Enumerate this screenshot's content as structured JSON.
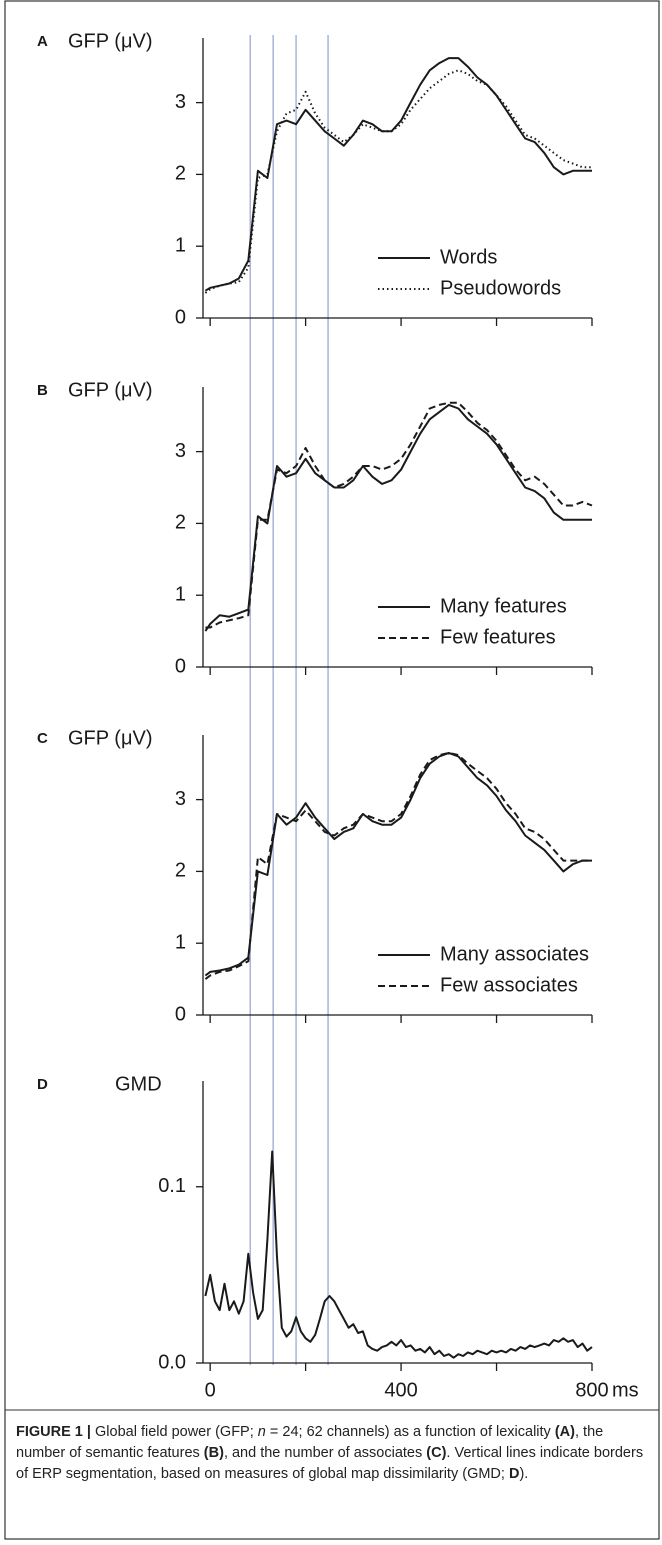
{
  "chart_data": [
    {
      "type": "line",
      "panel": "A",
      "ylabel": "GFP (μV)",
      "x": [
        -10,
        0,
        20,
        40,
        60,
        80,
        100,
        120,
        140,
        160,
        180,
        200,
        220,
        240,
        260,
        280,
        300,
        320,
        340,
        360,
        380,
        400,
        420,
        440,
        460,
        480,
        500,
        520,
        540,
        560,
        580,
        600,
        620,
        640,
        660,
        680,
        700,
        720,
        740,
        760,
        780,
        800
      ],
      "series": [
        {
          "name": "Words",
          "color": "#1a1a1a",
          "dash": "solid",
          "values": [
            0.38,
            0.42,
            0.45,
            0.48,
            0.55,
            0.8,
            2.05,
            1.95,
            2.7,
            2.75,
            2.7,
            2.9,
            2.75,
            2.6,
            2.5,
            2.4,
            2.55,
            2.75,
            2.7,
            2.6,
            2.6,
            2.75,
            3.0,
            3.25,
            3.45,
            3.55,
            3.62,
            3.62,
            3.5,
            3.35,
            3.25,
            3.1,
            2.9,
            2.7,
            2.5,
            2.45,
            2.3,
            2.1,
            2.0,
            2.05,
            2.05,
            2.05
          ]
        },
        {
          "name": "Pseudowords",
          "color": "#1a1a1a",
          "dash": "dotted",
          "values": [
            0.35,
            0.4,
            0.45,
            0.48,
            0.5,
            0.7,
            1.95,
            2.0,
            2.6,
            2.85,
            2.9,
            3.15,
            2.85,
            2.65,
            2.55,
            2.45,
            2.55,
            2.7,
            2.65,
            2.6,
            2.6,
            2.7,
            2.9,
            3.05,
            3.2,
            3.3,
            3.4,
            3.45,
            3.4,
            3.3,
            3.25,
            3.1,
            2.95,
            2.75,
            2.55,
            2.5,
            2.4,
            2.3,
            2.2,
            2.15,
            2.1,
            2.1
          ]
        }
      ],
      "xlim": [
        -15,
        800
      ],
      "xtick_marks": [
        0,
        200,
        400,
        600,
        800
      ],
      "ylim": [
        0,
        3.9
      ],
      "yticks": [
        0,
        1,
        2,
        3
      ],
      "legend": "lower right"
    },
    {
      "type": "line",
      "panel": "B",
      "ylabel": "GFP (μV)",
      "x": [
        -10,
        0,
        20,
        40,
        60,
        80,
        100,
        120,
        140,
        160,
        180,
        200,
        220,
        240,
        260,
        280,
        300,
        320,
        340,
        360,
        380,
        400,
        420,
        440,
        460,
        480,
        500,
        520,
        540,
        560,
        580,
        600,
        620,
        640,
        660,
        680,
        700,
        720,
        740,
        760,
        780,
        800
      ],
      "series": [
        {
          "name": "Many features",
          "color": "#1a1a1a",
          "dash": "solid",
          "values": [
            0.5,
            0.6,
            0.72,
            0.7,
            0.75,
            0.8,
            2.1,
            2.0,
            2.8,
            2.65,
            2.7,
            2.9,
            2.7,
            2.6,
            2.5,
            2.5,
            2.6,
            2.8,
            2.65,
            2.55,
            2.6,
            2.75,
            3.0,
            3.25,
            3.45,
            3.55,
            3.65,
            3.6,
            3.45,
            3.35,
            3.25,
            3.1,
            2.9,
            2.7,
            2.5,
            2.45,
            2.35,
            2.15,
            2.05,
            2.05,
            2.05,
            2.05
          ]
        },
        {
          "name": "Few features",
          "color": "#1a1a1a",
          "dash": "dashed",
          "values": [
            0.55,
            0.55,
            0.62,
            0.65,
            0.68,
            0.72,
            2.05,
            2.05,
            2.75,
            2.7,
            2.8,
            3.05,
            2.8,
            2.6,
            2.5,
            2.55,
            2.65,
            2.8,
            2.8,
            2.75,
            2.8,
            2.9,
            3.1,
            3.35,
            3.6,
            3.65,
            3.68,
            3.68,
            3.55,
            3.4,
            3.3,
            3.15,
            2.95,
            2.75,
            2.6,
            2.65,
            2.55,
            2.4,
            2.25,
            2.25,
            2.3,
            2.25
          ]
        }
      ],
      "xlim": [
        -15,
        800
      ],
      "xtick_marks": [
        0,
        200,
        400,
        600,
        800
      ],
      "ylim": [
        0,
        3.9
      ],
      "yticks": [
        0,
        1,
        2,
        3
      ],
      "legend": "lower right"
    },
    {
      "type": "line",
      "panel": "C",
      "ylabel": "GFP (μV)",
      "x": [
        -10,
        0,
        20,
        40,
        60,
        80,
        100,
        120,
        140,
        160,
        180,
        200,
        220,
        240,
        260,
        280,
        300,
        320,
        340,
        360,
        380,
        400,
        420,
        440,
        460,
        480,
        500,
        520,
        540,
        560,
        580,
        600,
        620,
        640,
        660,
        680,
        700,
        720,
        740,
        760,
        780,
        800
      ],
      "series": [
        {
          "name": "Many associates",
          "color": "#1a1a1a",
          "dash": "solid",
          "values": [
            0.55,
            0.6,
            0.62,
            0.65,
            0.7,
            0.8,
            2.0,
            1.95,
            2.8,
            2.65,
            2.75,
            2.95,
            2.75,
            2.6,
            2.45,
            2.55,
            2.6,
            2.8,
            2.7,
            2.65,
            2.65,
            2.75,
            3.0,
            3.3,
            3.5,
            3.6,
            3.65,
            3.6,
            3.45,
            3.3,
            3.2,
            3.05,
            2.85,
            2.7,
            2.5,
            2.4,
            2.3,
            2.15,
            2.0,
            2.1,
            2.15,
            2.15
          ]
        },
        {
          "name": "Few associates",
          "color": "#1a1a1a",
          "dash": "dashed",
          "values": [
            0.5,
            0.55,
            0.6,
            0.62,
            0.68,
            0.75,
            2.2,
            2.1,
            2.8,
            2.75,
            2.7,
            2.85,
            2.7,
            2.55,
            2.5,
            2.6,
            2.65,
            2.8,
            2.75,
            2.7,
            2.7,
            2.8,
            3.05,
            3.35,
            3.55,
            3.62,
            3.65,
            3.62,
            3.5,
            3.4,
            3.3,
            3.15,
            2.95,
            2.8,
            2.6,
            2.55,
            2.45,
            2.3,
            2.15,
            2.15,
            2.15,
            2.15
          ]
        }
      ],
      "xlim": [
        -15,
        800
      ],
      "xtick_marks": [
        0,
        200,
        400,
        600,
        800
      ],
      "ylim": [
        0,
        3.9
      ],
      "yticks": [
        0,
        1,
        2,
        3
      ],
      "legend": "lower right"
    },
    {
      "type": "line",
      "panel": "D",
      "ylabel": "GMD",
      "x": [
        -10,
        0,
        10,
        20,
        30,
        40,
        50,
        60,
        70,
        80,
        90,
        100,
        110,
        120,
        130,
        140,
        150,
        160,
        170,
        180,
        190,
        200,
        210,
        220,
        230,
        240,
        250,
        260,
        270,
        280,
        290,
        300,
        310,
        320,
        330,
        340,
        350,
        360,
        370,
        380,
        390,
        400,
        410,
        420,
        430,
        440,
        450,
        460,
        470,
        480,
        490,
        500,
        510,
        520,
        530,
        540,
        550,
        560,
        570,
        580,
        590,
        600,
        610,
        620,
        630,
        640,
        650,
        660,
        670,
        680,
        690,
        700,
        710,
        720,
        730,
        740,
        750,
        760,
        770,
        780,
        790,
        800
      ],
      "series": [
        {
          "name": "GMD",
          "color": "#1a1a1a",
          "dash": "solid",
          "values": [
            0.038,
            0.05,
            0.035,
            0.03,
            0.045,
            0.03,
            0.035,
            0.028,
            0.035,
            0.062,
            0.04,
            0.025,
            0.03,
            0.07,
            0.12,
            0.06,
            0.02,
            0.015,
            0.018,
            0.026,
            0.018,
            0.014,
            0.012,
            0.016,
            0.025,
            0.035,
            0.038,
            0.035,
            0.03,
            0.025,
            0.02,
            0.022,
            0.017,
            0.018,
            0.01,
            0.008,
            0.007,
            0.009,
            0.01,
            0.012,
            0.01,
            0.013,
            0.009,
            0.01,
            0.007,
            0.008,
            0.006,
            0.009,
            0.005,
            0.007,
            0.004,
            0.005,
            0.003,
            0.005,
            0.004,
            0.006,
            0.005,
            0.007,
            0.006,
            0.005,
            0.007,
            0.006,
            0.007,
            0.006,
            0.008,
            0.007,
            0.009,
            0.008,
            0.01,
            0.009,
            0.01,
            0.011,
            0.01,
            0.013,
            0.012,
            0.014,
            0.012,
            0.013,
            0.009,
            0.011,
            0.007,
            0.009
          ]
        }
      ],
      "xlim": [
        -15,
        800
      ],
      "xtick_marks": [
        200,
        600
      ],
      "xticks": [
        0,
        400,
        800
      ],
      "xunit": "ms",
      "ylim": [
        0,
        0.16
      ],
      "yticks": [
        {
          "value": 0,
          "label": "0.0"
        },
        0.1
      ]
    }
  ],
  "segment_borders": [
    84,
    132,
    180,
    247
  ],
  "caption": {
    "label": "FIGURE 1 |",
    "parts": [
      "Global field power (GFP; ",
      "n",
      " = 24; 62 channels) as a function of lexicality ",
      "(A)",
      ", the number of semantic features ",
      "(B)",
      ", and the number of associates ",
      "(C)",
      ". Vertical lines indicate borders of ERP segmentation, based on measures of global map dissimilarity (GMD; ",
      "D",
      ")."
    ]
  }
}
